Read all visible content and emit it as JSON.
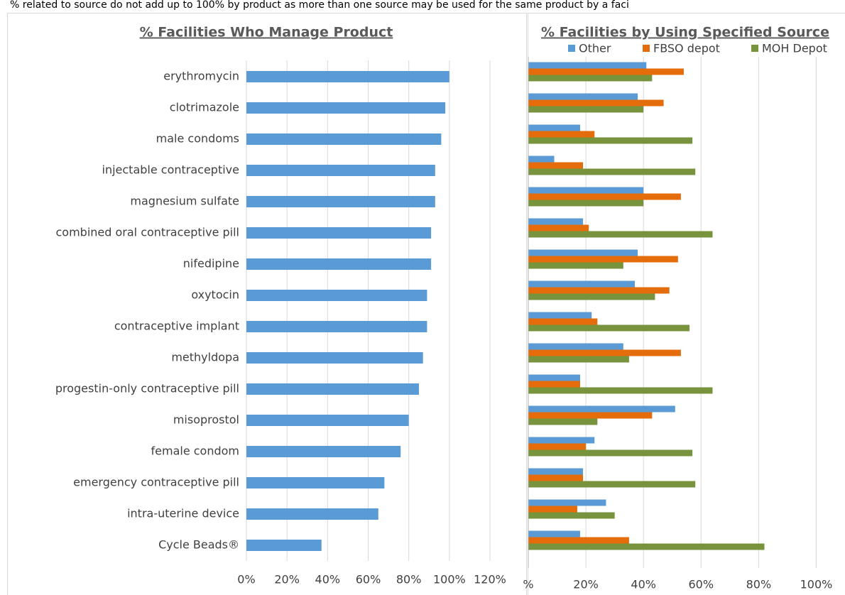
{
  "note": "% related to source do not add up to 100% by product as more than one source may be used for the same product by a faci",
  "chart_data": [
    {
      "type": "bar",
      "title": "% Facilities Who Manage Product",
      "categories": [
        "erythromycin",
        "clotrimazole",
        "male condoms",
        "injectable contraceptive",
        "magnesium sulfate",
        "combined oral contraceptive pill",
        "nifedipine",
        "oxytocin",
        "contraceptive implant",
        "methyldopa",
        "progestin-only contraceptive pill",
        "misoprostol",
        "female condom",
        "emergency contraceptive pill",
        "intra-uterine device",
        "Cycle Beads®"
      ],
      "values": [
        100,
        98,
        96,
        93,
        93,
        91,
        91,
        89,
        89,
        87,
        85,
        80,
        76,
        68,
        65,
        37
      ],
      "color": "#5b9bd5",
      "xlim": [
        0,
        120
      ],
      "xticks": [
        {
          "value": 0,
          "label": "0%"
        },
        {
          "value": 20,
          "label": "20%"
        },
        {
          "value": 40,
          "label": "40%"
        },
        {
          "value": 60,
          "label": "60%"
        },
        {
          "value": 80,
          "label": "80%"
        },
        {
          "value": 100,
          "label": "100%"
        },
        {
          "value": 120,
          "label": "120%"
        }
      ],
      "grid": true
    },
    {
      "type": "bar",
      "title": "% Facilities by Using Specified Source",
      "series": [
        {
          "name": "Other",
          "color": "#5b9bd5",
          "values": [
            41,
            38,
            18,
            9,
            40,
            19,
            38,
            37,
            22,
            33,
            18,
            51,
            23,
            19,
            27,
            18
          ]
        },
        {
          "name": "FBSO depot",
          "color": "#e46c0a",
          "values": [
            54,
            47,
            23,
            19,
            53,
            21,
            52,
            49,
            24,
            53,
            18,
            43,
            20,
            19,
            17,
            35
          ]
        },
        {
          "name": "MOH Depot",
          "color": "#77933c",
          "values": [
            43,
            40,
            57,
            58,
            40,
            64,
            33,
            44,
            56,
            35,
            64,
            24,
            57,
            58,
            30,
            82
          ]
        }
      ],
      "xlim": [
        0,
        110
      ],
      "xticks": [
        {
          "value": 0,
          "label": "%"
        },
        {
          "value": 20,
          "label": "20%"
        },
        {
          "value": 40,
          "label": "40%"
        },
        {
          "value": 60,
          "label": "60%"
        },
        {
          "value": 80,
          "label": "80%"
        },
        {
          "value": 100,
          "label": "100%"
        }
      ],
      "grid": true,
      "legend": "top"
    }
  ]
}
